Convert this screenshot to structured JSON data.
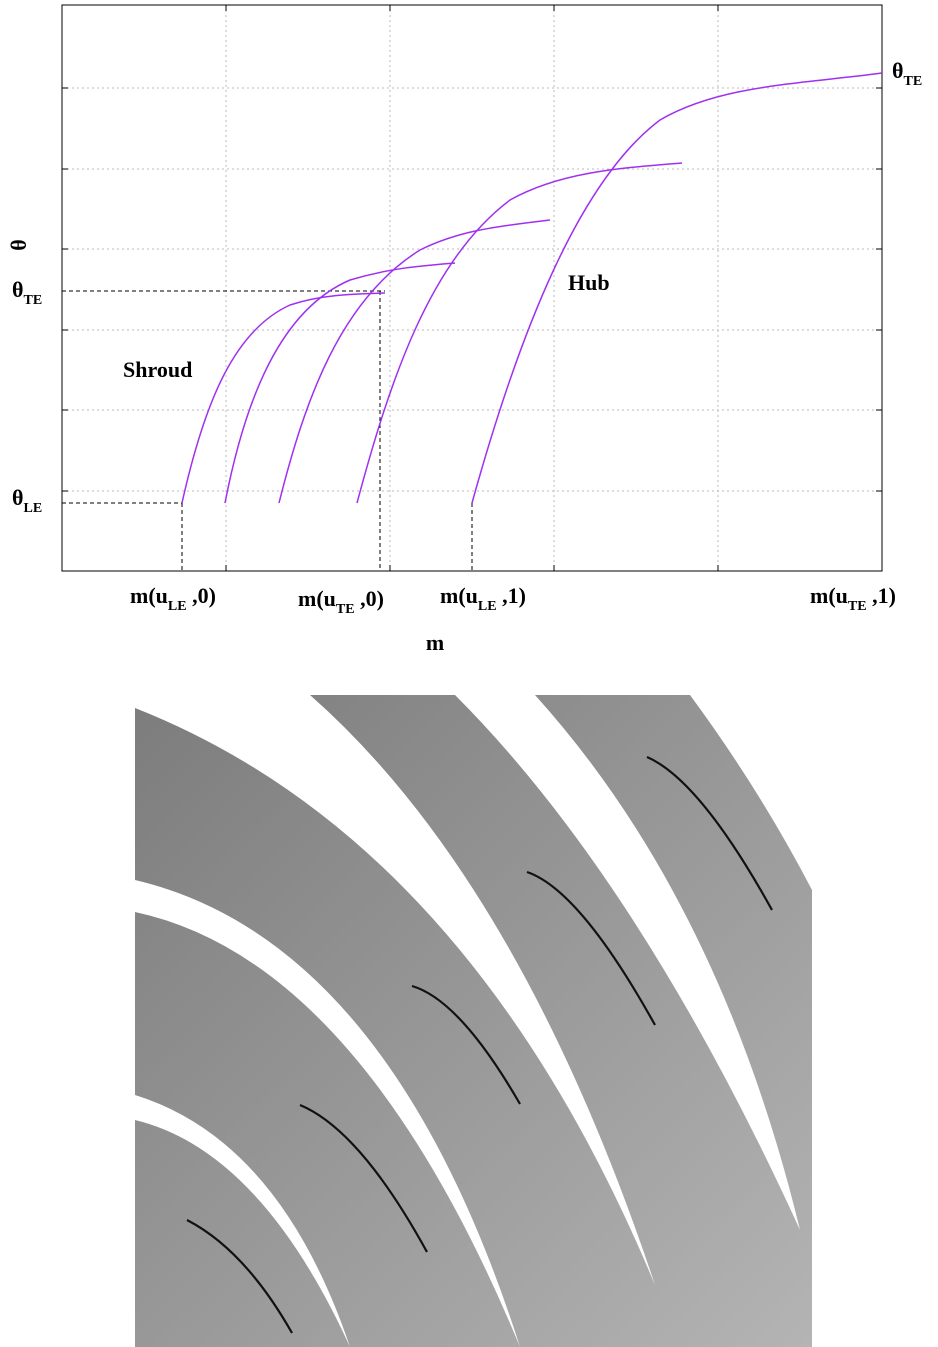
{
  "figure": {
    "plot": {
      "y_axis_label": "θ",
      "x_axis_label": "m",
      "theta_te_left": [
        "θ",
        "TE"
      ],
      "theta_le": [
        "θ",
        "LE"
      ],
      "theta_te_right": [
        "θ",
        "TE"
      ],
      "shroud": "Shroud",
      "hub": "Hub",
      "m_le_0": [
        "m(u",
        "LE",
        " ,0)"
      ],
      "m_te_0": [
        "m(u",
        "TE",
        " ,0)"
      ],
      "m_le_1": [
        "m(u",
        "LE",
        " ,1)"
      ],
      "m_te_1": [
        "m(u",
        "TE",
        " ,1)"
      ]
    }
  }
}
